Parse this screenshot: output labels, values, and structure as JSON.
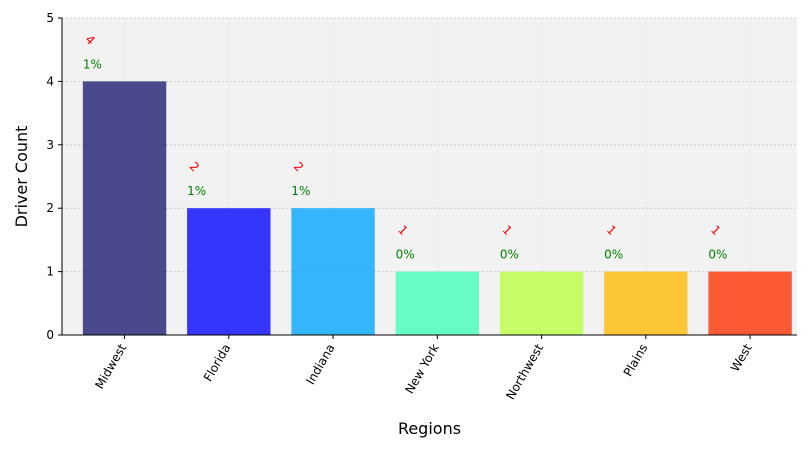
{
  "chart_data": {
    "type": "bar",
    "xlabel": "Regions",
    "ylabel": "Driver Count",
    "ylim": [
      0,
      5
    ],
    "yticks": [
      0,
      1,
      2,
      3,
      4,
      5
    ],
    "grid": true,
    "categories": [
      "Midwest",
      "Florida",
      "Indiana",
      "New York",
      "Northwest",
      "Plains",
      "West"
    ],
    "values": [
      4,
      2,
      2,
      1,
      1,
      1,
      1
    ],
    "percent_labels": [
      "1%",
      "1%",
      "1%",
      "0%",
      "0%",
      "0%",
      "0%"
    ],
    "count_labels": [
      "4",
      "2",
      "2",
      "1",
      "1",
      "1",
      "1"
    ],
    "colors": [
      "#191970",
      "#0000ff",
      "#00a5ff",
      "#40ffb9",
      "#b9ff40",
      "#ffb900",
      "#ff3000"
    ],
    "label_colors": {
      "count": "#ff0000",
      "percent": "#008000"
    },
    "plot_background": "#f2f2f2"
  }
}
